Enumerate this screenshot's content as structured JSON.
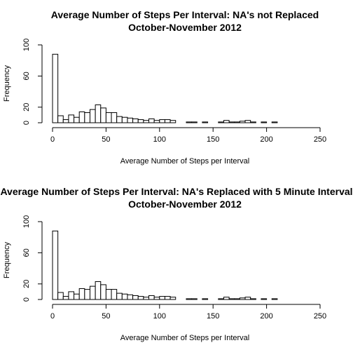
{
  "chart_data": [
    {
      "type": "bar",
      "title": "Average Number of Steps Per Interval: NA's not Replaced",
      "subtitle": "October-November 2012",
      "xlabel": "Average Number of Steps per Interval",
      "ylabel": "Frequency",
      "xlim": [
        0,
        250
      ],
      "ylim": [
        0,
        100
      ],
      "xticks": [
        0,
        50,
        100,
        150,
        200,
        250
      ],
      "yticks": [
        0,
        20,
        60,
        100
      ],
      "bin_width": 5,
      "bin_start": 0,
      "values": [
        88,
        9,
        4,
        10,
        7,
        14,
        13,
        17,
        23,
        19,
        13,
        13,
        8,
        7,
        6,
        5,
        4,
        3,
        5,
        3,
        4,
        4,
        3,
        0,
        0,
        1,
        1,
        0,
        1,
        0,
        0,
        1,
        3,
        1,
        1,
        2,
        3,
        1,
        0,
        1,
        0,
        1
      ],
      "grid": false,
      "legend": "none"
    },
    {
      "type": "bar",
      "title": "Average Number of Steps Per Interval: NA's Replaced with 5 Minute Interval",
      "subtitle": "October-November 2012",
      "xlabel": "Average Number of Steps per Interval",
      "ylabel": "Frequency",
      "xlim": [
        0,
        250
      ],
      "ylim": [
        0,
        100
      ],
      "xticks": [
        0,
        50,
        100,
        150,
        200,
        250
      ],
      "yticks": [
        0,
        20,
        60,
        100
      ],
      "bin_width": 5,
      "bin_start": 0,
      "values": [
        88,
        9,
        4,
        10,
        7,
        14,
        13,
        17,
        23,
        19,
        13,
        13,
        8,
        7,
        6,
        5,
        4,
        3,
        5,
        3,
        4,
        4,
        3,
        0,
        0,
        1,
        1,
        0,
        1,
        0,
        0,
        1,
        3,
        1,
        1,
        2,
        3,
        1,
        0,
        1,
        0,
        1
      ],
      "grid": false,
      "legend": "none"
    }
  ]
}
